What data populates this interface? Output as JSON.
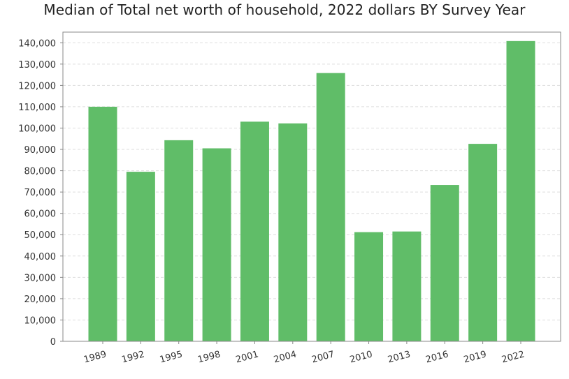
{
  "chart_data": {
    "type": "bar",
    "title": "Median of Total net worth of household, 2022 dollars BY Survey Year",
    "xlabel": "",
    "ylabel": "",
    "categories": [
      "1989",
      "1992",
      "1995",
      "1998",
      "2001",
      "2004",
      "2007",
      "2010",
      "2013",
      "2016",
      "2019",
      "2022"
    ],
    "values": [
      110000,
      79500,
      94300,
      90500,
      103000,
      102200,
      125800,
      51200,
      51500,
      73300,
      92600,
      140800
    ],
    "ylim": [
      0,
      145000
    ],
    "yticks": [
      0,
      10000,
      20000,
      30000,
      40000,
      50000,
      60000,
      70000,
      80000,
      90000,
      100000,
      110000,
      120000,
      130000,
      140000
    ],
    "ytick_labels": [
      "0",
      "10,000",
      "20,000",
      "30,000",
      "40,000",
      "50,000",
      "60,000",
      "70,000",
      "80,000",
      "90,000",
      "100,000",
      "110,000",
      "120,000",
      "130,000",
      "140,000"
    ],
    "grid": true,
    "legend": "none",
    "bar_color": "#60bd68",
    "grid_color": "#dddddd",
    "frame_color": "#888888"
  }
}
